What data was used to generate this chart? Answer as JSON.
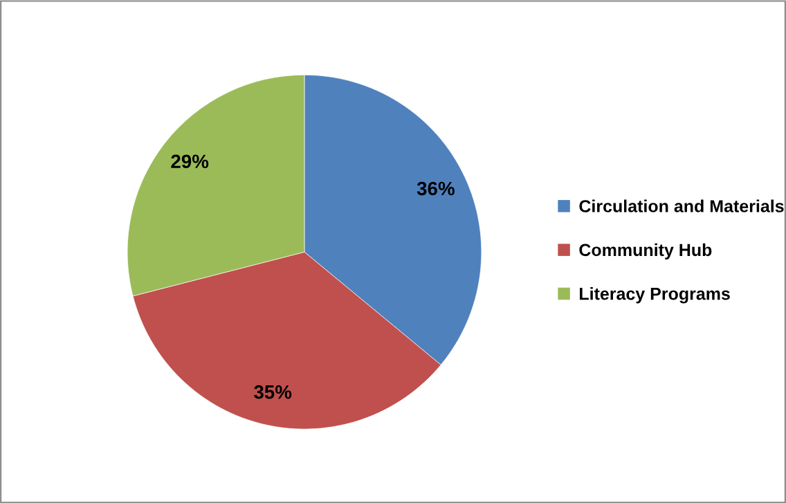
{
  "chart_data": {
    "type": "pie",
    "categories": [
      "Circulation and Materials",
      "Community Hub",
      "Literacy Programs"
    ],
    "values": [
      36,
      35,
      29
    ],
    "colors": [
      "#4f81bd",
      "#c0504d",
      "#9bbb59"
    ],
    "value_labels": [
      "36%",
      "35%",
      "29%"
    ],
    "legend": "right"
  }
}
